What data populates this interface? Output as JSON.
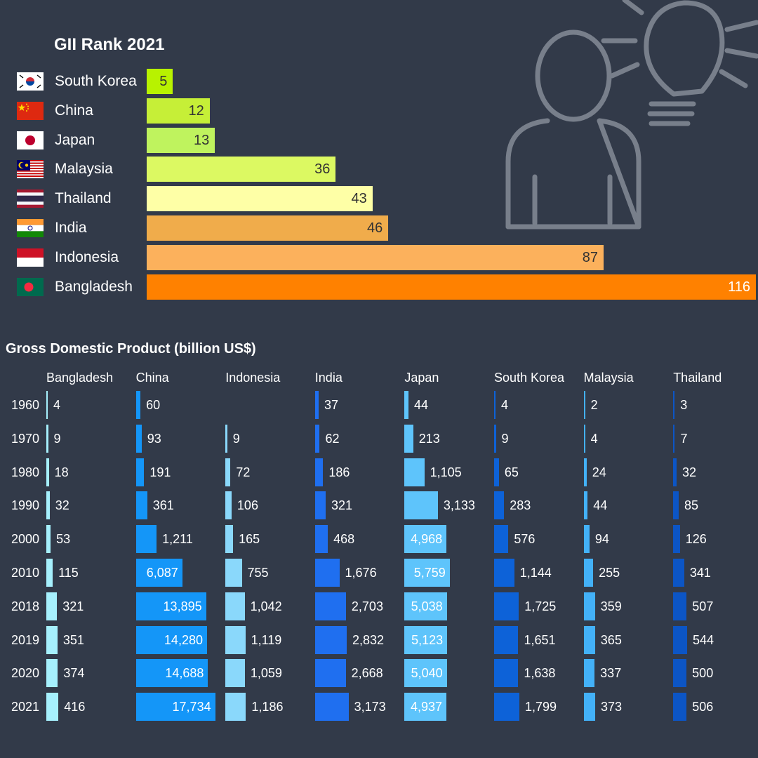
{
  "chart_data": [
    {
      "type": "bar",
      "orientation": "horizontal",
      "title": "GII Rank 2021",
      "categories": [
        "South Korea",
        "China",
        "Japan",
        "Malaysia",
        "Thailand",
        "India",
        "Indonesia",
        "Bangladesh"
      ],
      "values": [
        5,
        12,
        13,
        36,
        43,
        46,
        87,
        116
      ],
      "colors": [
        "#b8f200",
        "#c6ef37",
        "#bff35e",
        "#dcf962",
        "#feffa6",
        "#f0ac4b",
        "#fcb15c",
        "#ff8100"
      ],
      "flags": [
        "south-korea-flag",
        "china-flag",
        "japan-flag",
        "malaysia-flag",
        "thailand-flag",
        "india-flag",
        "indonesia-flag",
        "bangladesh-flag"
      ]
    },
    {
      "type": "bar",
      "title": "Gross Domestic Product (billion US$)",
      "years": [
        "1960",
        "1970",
        "1980",
        "1990",
        "2000",
        "2010",
        "2018",
        "2019",
        "2020",
        "2021"
      ],
      "series": [
        {
          "name": "Bangladesh",
          "color": "#a6f0fd",
          "values": [
            4,
            9,
            18,
            32,
            53,
            115,
            321,
            351,
            374,
            416
          ],
          "labels": [
            "4",
            "9",
            "18",
            "32",
            "53",
            "115",
            "321",
            "351",
            "374",
            "416"
          ]
        },
        {
          "name": "China",
          "color": "#1496f8",
          "values": [
            60,
            93,
            191,
            361,
            1211,
            6087,
            13895,
            14280,
            14688,
            17734
          ],
          "labels": [
            "60",
            "93",
            "191",
            "361",
            "1,211",
            "6,087",
            "13,895",
            "14,280",
            "14,688",
            "17,734"
          ]
        },
        {
          "name": "Indonesia",
          "color": "#8ad8fb",
          "values": [
            null,
            9,
            72,
            106,
            165,
            755,
            1042,
            1119,
            1059,
            1186
          ],
          "labels": [
            "",
            "9",
            "72",
            "106",
            "165",
            "755",
            "1,042",
            "1,119",
            "1,059",
            "1,186"
          ]
        },
        {
          "name": "India",
          "color": "#1f6ff0",
          "values": [
            37,
            62,
            186,
            321,
            468,
            1676,
            2703,
            2832,
            2668,
            3173
          ],
          "labels": [
            "37",
            "62",
            "186",
            "321",
            "468",
            "1,676",
            "2,703",
            "2,832",
            "2,668",
            "3,173"
          ]
        },
        {
          "name": "Japan",
          "color": "#5ec4fb",
          "values": [
            44,
            213,
            1105,
            3133,
            4968,
            5759,
            5038,
            5123,
            5040,
            4937
          ],
          "labels": [
            "44",
            "213",
            "1,105",
            "3,133",
            "4,968",
            "5,759",
            "5,038",
            "5,123",
            "5,040",
            "4,937"
          ]
        },
        {
          "name": "South Korea",
          "color": "#0d62d8",
          "values": [
            4,
            9,
            65,
            283,
            576,
            1144,
            1725,
            1651,
            1638,
            1799
          ],
          "labels": [
            "4",
            "9",
            "65",
            "283",
            "576",
            "1,144",
            "1,725",
            "1,651",
            "1,638",
            "1,799"
          ]
        },
        {
          "name": "Malaysia",
          "color": "#43b1f8",
          "values": [
            2,
            4,
            24,
            44,
            94,
            255,
            359,
            365,
            337,
            373
          ],
          "labels": [
            "2",
            "4",
            "24",
            "44",
            "94",
            "255",
            "359",
            "365",
            "337",
            "373"
          ]
        },
        {
          "name": "Thailand",
          "color": "#0c55c5",
          "values": [
            3,
            7,
            32,
            85,
            126,
            341,
            507,
            544,
            500,
            506
          ],
          "labels": [
            "3",
            "7",
            "32",
            "85",
            "126",
            "341",
            "507",
            "544",
            "500",
            "506"
          ]
        }
      ]
    }
  ],
  "illustration": {
    "icons": [
      "person-icon",
      "lightbulb-icon"
    ],
    "stroke_color": "#787f8b"
  }
}
